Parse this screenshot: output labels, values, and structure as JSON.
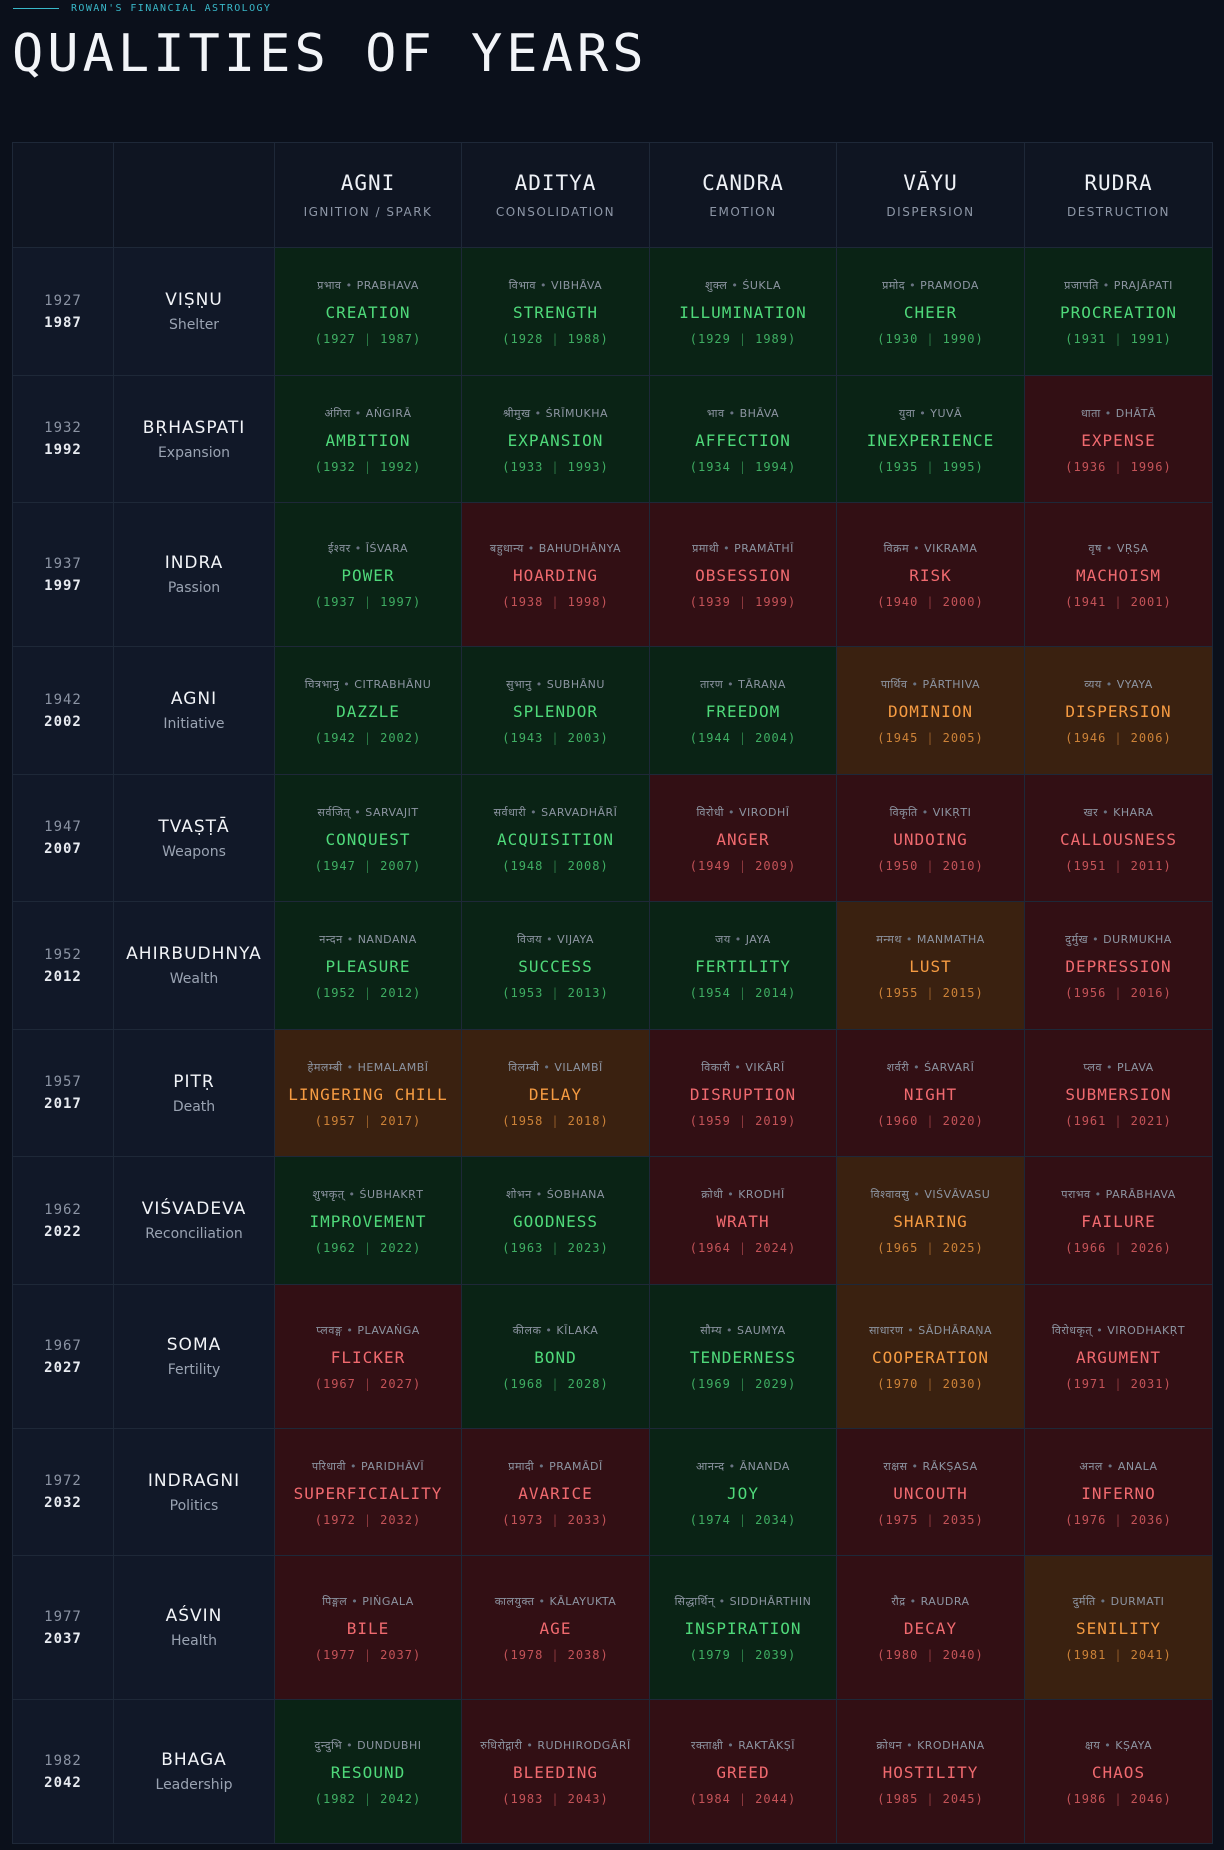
{
  "eyebrow": "ROWAN'S FINANCIAL ASTROLOGY",
  "title": "QUALITIES OF YEARS",
  "columns": [
    {
      "name": "AGNI",
      "sub": "IGNITION / SPARK"
    },
    {
      "name": "ADITYA",
      "sub": "CONSOLIDATION"
    },
    {
      "name": "CANDRA",
      "sub": "EMOTION"
    },
    {
      "name": "VĀYU",
      "sub": "DISPERSION"
    },
    {
      "name": "RUDRA",
      "sub": "DESTRUCTION"
    }
  ],
  "colors": {
    "green": "#0a2315",
    "red": "#320f14",
    "orange": "#3a2110"
  },
  "rows": [
    {
      "y1": "1927",
      "y2": "1987",
      "deity": "VIṢṆU",
      "deity_sub": "Shelter",
      "cells": [
        {
          "dev": "प्रभाव",
          "lat": "PRABHAVA",
          "word": "CREATION",
          "a": "1927",
          "b": "1987",
          "t": "g"
        },
        {
          "dev": "विभाव",
          "lat": "VIBHĀVA",
          "word": "STRENGTH",
          "a": "1928",
          "b": "1988",
          "t": "g"
        },
        {
          "dev": "शुक्ल",
          "lat": "ŚUKLA",
          "word": "ILLUMINATION",
          "a": "1929",
          "b": "1989",
          "t": "g"
        },
        {
          "dev": "प्रमोद",
          "lat": "PRAMODA",
          "word": "CHEER",
          "a": "1930",
          "b": "1990",
          "t": "g"
        },
        {
          "dev": "प्रजापति",
          "lat": "PRAJĀPATI",
          "word": "PROCREATION",
          "a": "1931",
          "b": "1991",
          "t": "g"
        }
      ]
    },
    {
      "y1": "1932",
      "y2": "1992",
      "deity": "BṚHASPATI",
      "deity_sub": "Expansion",
      "cells": [
        {
          "dev": "अंगिरा",
          "lat": "AṄGIRĀ",
          "word": "AMBITION",
          "a": "1932",
          "b": "1992",
          "t": "g"
        },
        {
          "dev": "श्रीमुख",
          "lat": "ŚRĪMUKHA",
          "word": "EXPANSION",
          "a": "1933",
          "b": "1993",
          "t": "g"
        },
        {
          "dev": "भाव",
          "lat": "BHĀVA",
          "word": "AFFECTION",
          "a": "1934",
          "b": "1994",
          "t": "g"
        },
        {
          "dev": "युवा",
          "lat": "YUVĀ",
          "word": "INEXPERIENCE",
          "a": "1935",
          "b": "1995",
          "t": "g"
        },
        {
          "dev": "धाता",
          "lat": "DHĀTĀ",
          "word": "EXPENSE",
          "a": "1936",
          "b": "1996",
          "t": "r"
        }
      ]
    },
    {
      "y1": "1937",
      "y2": "1997",
      "deity": "INDRA",
      "deity_sub": "Passion",
      "cells": [
        {
          "dev": "ईश्वर",
          "lat": "ĪŚVARA",
          "word": "POWER",
          "a": "1937",
          "b": "1997",
          "t": "g"
        },
        {
          "dev": "बहुधान्य",
          "lat": "BAHUDHĀNYA",
          "word": "HOARDING",
          "a": "1938",
          "b": "1998",
          "t": "r"
        },
        {
          "dev": "प्रमाथी",
          "lat": "PRAMĀTHĪ",
          "word": "OBSESSION",
          "a": "1939",
          "b": "1999",
          "t": "r"
        },
        {
          "dev": "विक्रम",
          "lat": "VIKRAMA",
          "word": "RISK",
          "a": "1940",
          "b": "2000",
          "t": "r"
        },
        {
          "dev": "वृष",
          "lat": "VṚṢA",
          "word": "MACHOISM",
          "a": "1941",
          "b": "2001",
          "t": "r"
        }
      ]
    },
    {
      "y1": "1942",
      "y2": "2002",
      "deity": "AGNI",
      "deity_sub": "Initiative",
      "cells": [
        {
          "dev": "चित्रभानु",
          "lat": "CITRABHĀNU",
          "word": "DAZZLE",
          "a": "1942",
          "b": "2002",
          "t": "g"
        },
        {
          "dev": "सुभानु",
          "lat": "SUBHĀNU",
          "word": "SPLENDOR",
          "a": "1943",
          "b": "2003",
          "t": "g"
        },
        {
          "dev": "तारण",
          "lat": "TĀRAṆA",
          "word": "FREEDOM",
          "a": "1944",
          "b": "2004",
          "t": "g"
        },
        {
          "dev": "पार्थिव",
          "lat": "PĀRTHIVA",
          "word": "DOMINION",
          "a": "1945",
          "b": "2005",
          "t": "o"
        },
        {
          "dev": "व्यय",
          "lat": "VYAYA",
          "word": "DISPERSION",
          "a": "1946",
          "b": "2006",
          "t": "o"
        }
      ]
    },
    {
      "y1": "1947",
      "y2": "2007",
      "deity": "TVAṢṬĀ",
      "deity_sub": "Weapons",
      "cells": [
        {
          "dev": "सर्वजित्",
          "lat": "SARVAJIT",
          "word": "CONQUEST",
          "a": "1947",
          "b": "2007",
          "t": "g"
        },
        {
          "dev": "सर्वधारी",
          "lat": "SARVADHĀRĪ",
          "word": "ACQUISITION",
          "a": "1948",
          "b": "2008",
          "t": "g"
        },
        {
          "dev": "विरोधी",
          "lat": "VIRODHĪ",
          "word": "ANGER",
          "a": "1949",
          "b": "2009",
          "t": "r"
        },
        {
          "dev": "विकृति",
          "lat": "VIKṚTI",
          "word": "UNDOING",
          "a": "1950",
          "b": "2010",
          "t": "r"
        },
        {
          "dev": "खर",
          "lat": "KHARA",
          "word": "CALLOUSNESS",
          "a": "1951",
          "b": "2011",
          "t": "r"
        }
      ]
    },
    {
      "y1": "1952",
      "y2": "2012",
      "deity": "AHIRBUDHNYA",
      "deity_sub": "Wealth",
      "cells": [
        {
          "dev": "नन्दन",
          "lat": "NANDANA",
          "word": "PLEASURE",
          "a": "1952",
          "b": "2012",
          "t": "g"
        },
        {
          "dev": "विजय",
          "lat": "VIJAYA",
          "word": "SUCCESS",
          "a": "1953",
          "b": "2013",
          "t": "g"
        },
        {
          "dev": "जय",
          "lat": "JAYA",
          "word": "FERTILITY",
          "a": "1954",
          "b": "2014",
          "t": "g"
        },
        {
          "dev": "मन्मथ",
          "lat": "MANMATHA",
          "word": "LUST",
          "a": "1955",
          "b": "2015",
          "t": "o"
        },
        {
          "dev": "दुर्मुख",
          "lat": "DURMUKHA",
          "word": "DEPRESSION",
          "a": "1956",
          "b": "2016",
          "t": "r"
        }
      ]
    },
    {
      "y1": "1957",
      "y2": "2017",
      "deity": "PITṚ",
      "deity_sub": "Death",
      "cells": [
        {
          "dev": "हेमलम्बी",
          "lat": "HEMALAMBĪ",
          "word": "LINGERING CHILL",
          "a": "1957",
          "b": "2017",
          "t": "o"
        },
        {
          "dev": "विलम्बी",
          "lat": "VILAMBĪ",
          "word": "DELAY",
          "a": "1958",
          "b": "2018",
          "t": "o"
        },
        {
          "dev": "विकारी",
          "lat": "VIKĀRĪ",
          "word": "DISRUPTION",
          "a": "1959",
          "b": "2019",
          "t": "r"
        },
        {
          "dev": "शर्वरी",
          "lat": "ŚARVARĪ",
          "word": "NIGHT",
          "a": "1960",
          "b": "2020",
          "t": "r"
        },
        {
          "dev": "प्लव",
          "lat": "PLAVA",
          "word": "SUBMERSION",
          "a": "1961",
          "b": "2021",
          "t": "r"
        }
      ]
    },
    {
      "y1": "1962",
      "y2": "2022",
      "deity": "VIŚVADEVA",
      "deity_sub": "Reconciliation",
      "cells": [
        {
          "dev": "शुभकृत्",
          "lat": "ŚUBHAKṚT",
          "word": "IMPROVEMENT",
          "a": "1962",
          "b": "2022",
          "t": "g"
        },
        {
          "dev": "शोभन",
          "lat": "ŚOBHANA",
          "word": "GOODNESS",
          "a": "1963",
          "b": "2023",
          "t": "g"
        },
        {
          "dev": "क्रोधी",
          "lat": "KRODHĪ",
          "word": "WRATH",
          "a": "1964",
          "b": "2024",
          "t": "r"
        },
        {
          "dev": "विश्वावसु",
          "lat": "VIŚVĀVASU",
          "word": "SHARING",
          "a": "1965",
          "b": "2025",
          "t": "o"
        },
        {
          "dev": "पराभव",
          "lat": "PARĀBHAVA",
          "word": "FAILURE",
          "a": "1966",
          "b": "2026",
          "t": "r"
        }
      ]
    },
    {
      "y1": "1967",
      "y2": "2027",
      "deity": "SOMA",
      "deity_sub": "Fertility",
      "cells": [
        {
          "dev": "प्लवङ्ग",
          "lat": "PLAVAṄGA",
          "word": "FLICKER",
          "a": "1967",
          "b": "2027",
          "t": "r"
        },
        {
          "dev": "कीलक",
          "lat": "KĪLAKA",
          "word": "BOND",
          "a": "1968",
          "b": "2028",
          "t": "g"
        },
        {
          "dev": "सौम्य",
          "lat": "SAUMYA",
          "word": "TENDERNESS",
          "a": "1969",
          "b": "2029",
          "t": "g"
        },
        {
          "dev": "साधारण",
          "lat": "SĀDHĀRAṆA",
          "word": "COOPERATION",
          "a": "1970",
          "b": "2030",
          "t": "o"
        },
        {
          "dev": "विरोधकृत्",
          "lat": "VIRODHAKṚT",
          "word": "ARGUMENT",
          "a": "1971",
          "b": "2031",
          "t": "r"
        }
      ]
    },
    {
      "y1": "1972",
      "y2": "2032",
      "deity": "INDRAGNI",
      "deity_sub": "Politics",
      "cells": [
        {
          "dev": "परिधावी",
          "lat": "PARIDHĀVĪ",
          "word": "SUPERFICIALITY",
          "a": "1972",
          "b": "2032",
          "t": "r"
        },
        {
          "dev": "प्रमादी",
          "lat": "PRAMĀDĪ",
          "word": "AVARICE",
          "a": "1973",
          "b": "2033",
          "t": "r"
        },
        {
          "dev": "आनन्द",
          "lat": "ĀNANDA",
          "word": "JOY",
          "a": "1974",
          "b": "2034",
          "t": "g"
        },
        {
          "dev": "राक्षस",
          "lat": "RĀKṢASA",
          "word": "UNCOUTH",
          "a": "1975",
          "b": "2035",
          "t": "r"
        },
        {
          "dev": "अनल",
          "lat": "ANALA",
          "word": "INFERNO",
          "a": "1976",
          "b": "2036",
          "t": "r"
        }
      ]
    },
    {
      "y1": "1977",
      "y2": "2037",
      "deity": "AŚVIN",
      "deity_sub": "Health",
      "cells": [
        {
          "dev": "पिङ्गल",
          "lat": "PIṄGALA",
          "word": "BILE",
          "a": "1977",
          "b": "2037",
          "t": "r"
        },
        {
          "dev": "कालयुक्त",
          "lat": "KĀLAYUKTA",
          "word": "AGE",
          "a": "1978",
          "b": "2038",
          "t": "r"
        },
        {
          "dev": "सिद्धार्थिन्",
          "lat": "SIDDHĀRTHIN",
          "word": "INSPIRATION",
          "a": "1979",
          "b": "2039",
          "t": "g"
        },
        {
          "dev": "रौद्र",
          "lat": "RAUDRA",
          "word": "DECAY",
          "a": "1980",
          "b": "2040",
          "t": "r"
        },
        {
          "dev": "दुर्मति",
          "lat": "DURMATI",
          "word": "SENILITY",
          "a": "1981",
          "b": "2041",
          "t": "o"
        }
      ]
    },
    {
      "y1": "1982",
      "y2": "2042",
      "deity": "BHAGA",
      "deity_sub": "Leadership",
      "cells": [
        {
          "dev": "दुन्दुभि",
          "lat": "DUNDUBHI",
          "word": "RESOUND",
          "a": "1982",
          "b": "2042",
          "t": "g"
        },
        {
          "dev": "रुधिरोद्गारी",
          "lat": "RUDHIRODGĀRĪ",
          "word": "BLEEDING",
          "a": "1983",
          "b": "2043",
          "t": "r"
        },
        {
          "dev": "रक्ताक्षी",
          "lat": "RAKTĀKṢĪ",
          "word": "GREED",
          "a": "1984",
          "b": "2044",
          "t": "r"
        },
        {
          "dev": "क्रोधन",
          "lat": "KRODHANA",
          "word": "HOSTILITY",
          "a": "1985",
          "b": "2045",
          "t": "r"
        },
        {
          "dev": "क्षय",
          "lat": "KṢAYA",
          "word": "CHAOS",
          "a": "1986",
          "b": "2046",
          "t": "r"
        }
      ]
    }
  ]
}
